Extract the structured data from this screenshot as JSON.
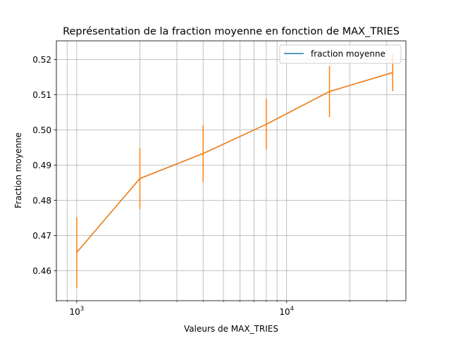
{
  "chart_data": {
    "type": "line",
    "title": "Représentation de la fraction moyenne en fonction de MAX_TRIES",
    "xlabel": "Valeurs de MAX_TRIES",
    "ylabel": "Fraction moyenne",
    "x_scale": "log",
    "xlim": [
      800,
      37000
    ],
    "ylim": [
      0.4515,
      0.5253
    ],
    "x_ticks_major": [
      {
        "value": 1000,
        "base": "10",
        "exp": "3"
      },
      {
        "value": 10000,
        "base": "10",
        "exp": "4"
      }
    ],
    "y_ticks": [
      "0.46",
      "0.47",
      "0.48",
      "0.49",
      "0.50",
      "0.51",
      "0.52"
    ],
    "grid": "both, including minor x gridlines",
    "legend": {
      "position": "top-right",
      "entries": [
        "fraction moyenne"
      ]
    },
    "series": [
      {
        "name": "fraction moyenne",
        "color": "#1f77b4",
        "x": [
          1000,
          2000,
          4000,
          8000,
          16000,
          32000
        ],
        "y": [
          0.4652,
          0.4862,
          0.4933,
          0.5016,
          0.5109,
          0.5163
        ]
      }
    ],
    "error_bars": {
      "color": "#ff7f0e",
      "x": [
        1000,
        2000,
        4000,
        8000,
        16000,
        32000
      ],
      "y": [
        0.4652,
        0.4862,
        0.4933,
        0.5016,
        0.5109,
        0.5163
      ],
      "yerr": [
        0.01,
        0.0087,
        0.0081,
        0.0072,
        0.0073,
        0.0053
      ]
    }
  }
}
